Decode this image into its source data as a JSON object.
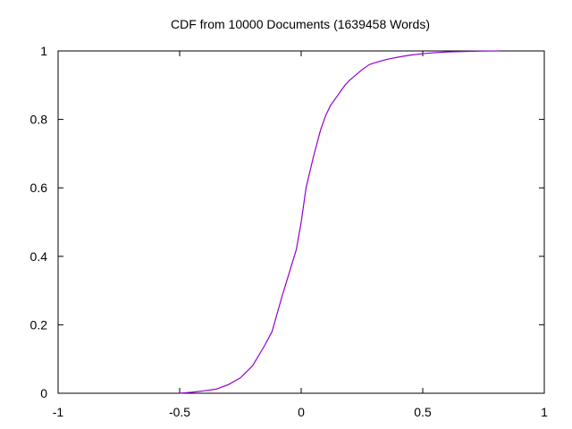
{
  "chart_data": {
    "type": "line",
    "title": "CDF from 10000 Documents (1639458 Words)",
    "xlabel": "",
    "ylabel": "",
    "xlim": [
      -1,
      1
    ],
    "ylim": [
      0,
      1
    ],
    "x_ticks": [
      "-1",
      "-0.5",
      "0",
      "0.5",
      "1"
    ],
    "y_ticks": [
      "0",
      "0.2",
      "0.4",
      "0.6",
      "0.8",
      "1"
    ],
    "grid": false,
    "legend": "none",
    "series": [
      {
        "color": "#9400d3",
        "x": [
          -0.5,
          -0.45,
          -0.4,
          -0.35,
          -0.3,
          -0.25,
          -0.2,
          -0.15,
          -0.12,
          -0.1,
          -0.08,
          -0.05,
          -0.02,
          0.0,
          0.02,
          0.05,
          0.08,
          0.1,
          0.12,
          0.15,
          0.18,
          0.2,
          0.25,
          0.28,
          0.3,
          0.35,
          0.4,
          0.45,
          0.5,
          0.55,
          0.6,
          0.65,
          0.7,
          0.75,
          0.82
        ],
        "y": [
          0.0,
          0.003,
          0.007,
          0.012,
          0.025,
          0.045,
          0.08,
          0.14,
          0.18,
          0.23,
          0.28,
          0.35,
          0.42,
          0.5,
          0.6,
          0.69,
          0.77,
          0.81,
          0.84,
          0.87,
          0.9,
          0.915,
          0.945,
          0.96,
          0.965,
          0.975,
          0.982,
          0.988,
          0.992,
          0.995,
          0.997,
          0.998,
          0.999,
          0.9995,
          1.0
        ]
      }
    ]
  }
}
